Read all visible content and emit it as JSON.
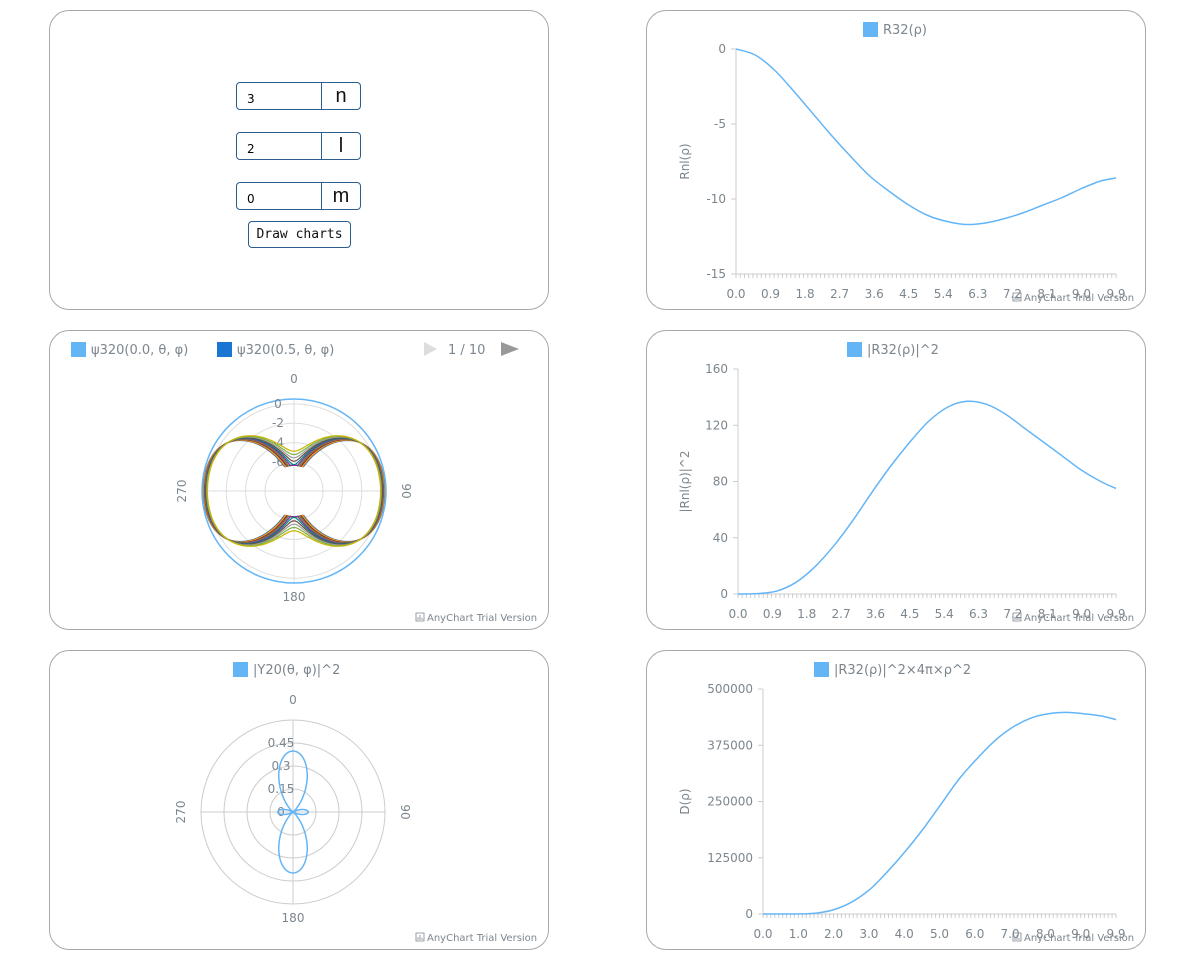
{
  "form": {
    "n_value": "3",
    "n_label": "n",
    "l_value": "2",
    "l_label": "l",
    "m_value": "0",
    "m_label": "m",
    "draw_button": "Draw charts"
  },
  "credit_text": "AnyChart Trial Version",
  "colors": {
    "series": "#64b5f6",
    "series2": "#1976d2",
    "grid": "#cccccc",
    "axis": "#cccccc",
    "text": "#7c868e",
    "nav_disabled": "#dddddd",
    "nav_enabled": "#999999"
  },
  "psi_pager": {
    "label": "1 / 10"
  },
  "chart_data": [
    {
      "id": "radial",
      "type": "line",
      "legend": [
        "R32(ρ)"
      ],
      "ylabel": "Rnl(ρ)",
      "yticks": [
        "0",
        "-5",
        "-10",
        "-15"
      ],
      "ytick_values": [
        0,
        -5,
        -10,
        -15
      ],
      "ylim": [
        -15,
        0
      ],
      "xticks": [
        "0.0",
        "0.9",
        "1.8",
        "2.7",
        "3.6",
        "4.5",
        "5.4",
        "6.3",
        "7.2",
        "8.1",
        "9.0",
        "9.9"
      ],
      "xlim": [
        0,
        9.9
      ],
      "x": [
        0.0,
        0.5,
        1.0,
        1.5,
        2.0,
        2.5,
        3.0,
        3.5,
        4.0,
        4.5,
        5.0,
        5.5,
        6.0,
        6.5,
        7.0,
        7.5,
        8.0,
        8.5,
        9.0,
        9.5,
        9.9
      ],
      "values": [
        0,
        -0.4,
        -1.4,
        -2.8,
        -4.3,
        -5.8,
        -7.2,
        -8.5,
        -9.5,
        -10.4,
        -11.1,
        -11.5,
        -11.7,
        -11.6,
        -11.3,
        -10.9,
        -10.4,
        -9.9,
        -9.3,
        -8.8,
        -8.6
      ]
    },
    {
      "id": "radial-squared",
      "type": "line",
      "legend": [
        "|R32(ρ)|^2"
      ],
      "ylabel": "|Rnl(ρ)|^2",
      "yticks": [
        "160",
        "120",
        "80",
        "40",
        "0"
      ],
      "ytick_values": [
        160,
        120,
        80,
        40,
        0
      ],
      "ylim": [
        0,
        160
      ],
      "xticks": [
        "0.0",
        "0.9",
        "1.8",
        "2.7",
        "3.6",
        "4.5",
        "5.4",
        "6.3",
        "7.2",
        "8.1",
        "9.0",
        "9.9"
      ],
      "xlim": [
        0,
        9.9
      ],
      "x": [
        0.0,
        0.5,
        1.0,
        1.5,
        2.0,
        2.5,
        3.0,
        3.5,
        4.0,
        4.5,
        5.0,
        5.5,
        6.0,
        6.5,
        7.0,
        7.5,
        8.0,
        8.5,
        9.0,
        9.5,
        9.9
      ],
      "values": [
        0,
        0.3,
        2,
        8,
        19,
        34,
        52,
        72,
        91,
        108,
        123,
        133,
        137,
        135,
        128,
        118,
        108,
        98,
        88,
        80,
        75
      ]
    },
    {
      "id": "density",
      "type": "line",
      "legend": [
        "|R32(ρ)|^2×4π×ρ^2"
      ],
      "ylabel": "D(ρ)",
      "yticks": [
        "500000",
        "375000",
        "250000",
        "125000",
        "0"
      ],
      "ytick_values": [
        500000,
        375000,
        250000,
        125000,
        0
      ],
      "ylim": [
        0,
        500000
      ],
      "xticks": [
        "0.0",
        "1.0",
        "2.0",
        "3.0",
        "4.0",
        "5.0",
        "6.0",
        "7.0",
        "8.0",
        "9.0",
        "9.9"
      ],
      "xlim": [
        0,
        9.9
      ],
      "x": [
        0.0,
        1.0,
        1.5,
        2.0,
        2.5,
        3.0,
        3.5,
        4.0,
        4.5,
        5.0,
        5.5,
        6.0,
        6.5,
        7.0,
        7.5,
        8.0,
        8.5,
        9.0,
        9.5,
        9.9
      ],
      "values": [
        0,
        200,
        2000,
        10000,
        27000,
        55000,
        95000,
        140000,
        190000,
        245000,
        300000,
        345000,
        385000,
        415000,
        435000,
        445000,
        448000,
        445000,
        440000,
        432000
      ]
    },
    {
      "id": "psi-polar",
      "type": "polar-line",
      "legend": [
        "ψ320(0.0, θ, φ)",
        "ψ320(0.5, θ, φ)"
      ],
      "angle_ticks": [
        "0",
        "90",
        "180",
        "270"
      ],
      "radial_ticks": [
        "0",
        "-2",
        "-4",
        "-6"
      ],
      "radial_tick_values": [
        0,
        -2,
        -4,
        -6
      ],
      "rlim": [
        -9,
        0.5
      ]
    },
    {
      "id": "ylm-polar",
      "type": "polar-line",
      "legend": [
        "|Y20(θ, φ)|^2"
      ],
      "angle_ticks": [
        "0",
        "90",
        "180",
        "270"
      ],
      "radial_ticks": [
        "0",
        "0.15",
        "0.3",
        "0.45"
      ],
      "radial_tick_values": [
        0,
        0.15,
        0.3,
        0.45
      ],
      "rlim": [
        0,
        0.6
      ]
    }
  ]
}
